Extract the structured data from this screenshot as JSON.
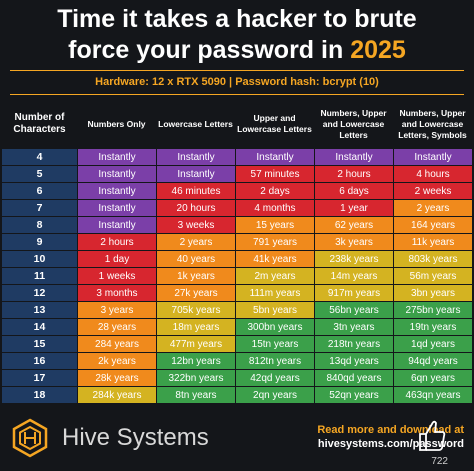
{
  "title": {
    "line1": "Time it takes a hacker to brute",
    "line2_pre": "force your password in ",
    "year": "2025"
  },
  "subtitle": "Hardware: 12 x RTX 5090 | Password hash: bcrypt (10)",
  "headers": [
    "Number of Characters",
    "Numbers Only",
    "Lowercase Letters",
    "Upper and Lowercase Letters",
    "Numbers, Upper and Lowercase Letters",
    "Numbers, Upper and Lowercase Letters, Symbols"
  ],
  "colors": {
    "purple": "#7b3fa8",
    "red": "#d7262f",
    "orange": "#f08a1c",
    "yellow": "#d4b321",
    "green": "#3ba04a",
    "number_col": "#1f3b63",
    "accent": "#f5a623"
  },
  "rows": [
    {
      "n": "4",
      "cells": [
        "Instantly",
        "Instantly",
        "Instantly",
        "Instantly",
        "Instantly"
      ],
      "c": [
        "purple",
        "purple",
        "purple",
        "purple",
        "purple"
      ]
    },
    {
      "n": "5",
      "cells": [
        "Instantly",
        "Instantly",
        "57 minutes",
        "2 hours",
        "4 hours"
      ],
      "c": [
        "purple",
        "purple",
        "red",
        "red",
        "red"
      ]
    },
    {
      "n": "6",
      "cells": [
        "Instantly",
        "46 minutes",
        "2 days",
        "6 days",
        "2 weeks"
      ],
      "c": [
        "purple",
        "red",
        "red",
        "red",
        "red"
      ]
    },
    {
      "n": "7",
      "cells": [
        "Instantly",
        "20 hours",
        "4 months",
        "1 year",
        "2 years"
      ],
      "c": [
        "purple",
        "red",
        "red",
        "red",
        "orange"
      ]
    },
    {
      "n": "8",
      "cells": [
        "Instantly",
        "3 weeks",
        "15 years",
        "62 years",
        "164 years"
      ],
      "c": [
        "purple",
        "red",
        "orange",
        "orange",
        "orange"
      ]
    },
    {
      "n": "9",
      "cells": [
        "2 hours",
        "2 years",
        "791 years",
        "3k years",
        "11k years"
      ],
      "c": [
        "red",
        "orange",
        "orange",
        "orange",
        "orange"
      ]
    },
    {
      "n": "10",
      "cells": [
        "1 day",
        "40 years",
        "41k years",
        "238k years",
        "803k years"
      ],
      "c": [
        "red",
        "orange",
        "orange",
        "yellow",
        "yellow"
      ]
    },
    {
      "n": "11",
      "cells": [
        "1 weeks",
        "1k years",
        "2m years",
        "14m years",
        "56m years"
      ],
      "c": [
        "red",
        "orange",
        "yellow",
        "yellow",
        "yellow"
      ]
    },
    {
      "n": "12",
      "cells": [
        "3 months",
        "27k years",
        "111m years",
        "917m years",
        "3bn years"
      ],
      "c": [
        "red",
        "orange",
        "yellow",
        "yellow",
        "yellow"
      ]
    },
    {
      "n": "13",
      "cells": [
        "3 years",
        "705k years",
        "5bn years",
        "56bn years",
        "275bn years"
      ],
      "c": [
        "orange",
        "yellow",
        "yellow",
        "green",
        "green"
      ]
    },
    {
      "n": "14",
      "cells": [
        "28 years",
        "18m years",
        "300bn years",
        "3tn years",
        "19tn years"
      ],
      "c": [
        "orange",
        "yellow",
        "green",
        "green",
        "green"
      ]
    },
    {
      "n": "15",
      "cells": [
        "284 years",
        "477m years",
        "15tn years",
        "218tn years",
        "1qd years"
      ],
      "c": [
        "orange",
        "yellow",
        "green",
        "green",
        "green"
      ]
    },
    {
      "n": "16",
      "cells": [
        "2k years",
        "12bn years",
        "812tn years",
        "13qd years",
        "94qd years"
      ],
      "c": [
        "orange",
        "green",
        "green",
        "green",
        "green"
      ]
    },
    {
      "n": "17",
      "cells": [
        "28k years",
        "322bn years",
        "42qd years",
        "840qd years",
        "6qn years"
      ],
      "c": [
        "orange",
        "green",
        "green",
        "green",
        "green"
      ]
    },
    {
      "n": "18",
      "cells": [
        "284k years",
        "8tn years",
        "2qn years",
        "52qn years",
        "463qn years"
      ],
      "c": [
        "yellow",
        "green",
        "green",
        "green",
        "green"
      ]
    }
  ],
  "footer": {
    "brand": "Hive Systems",
    "cta_line1": "Read more and download at",
    "cta_line2": "hivesystems.com/password",
    "counter": "722",
    "logo_icon": "hexagon-logo-icon",
    "like_icon": "thumbs-up-icon"
  }
}
